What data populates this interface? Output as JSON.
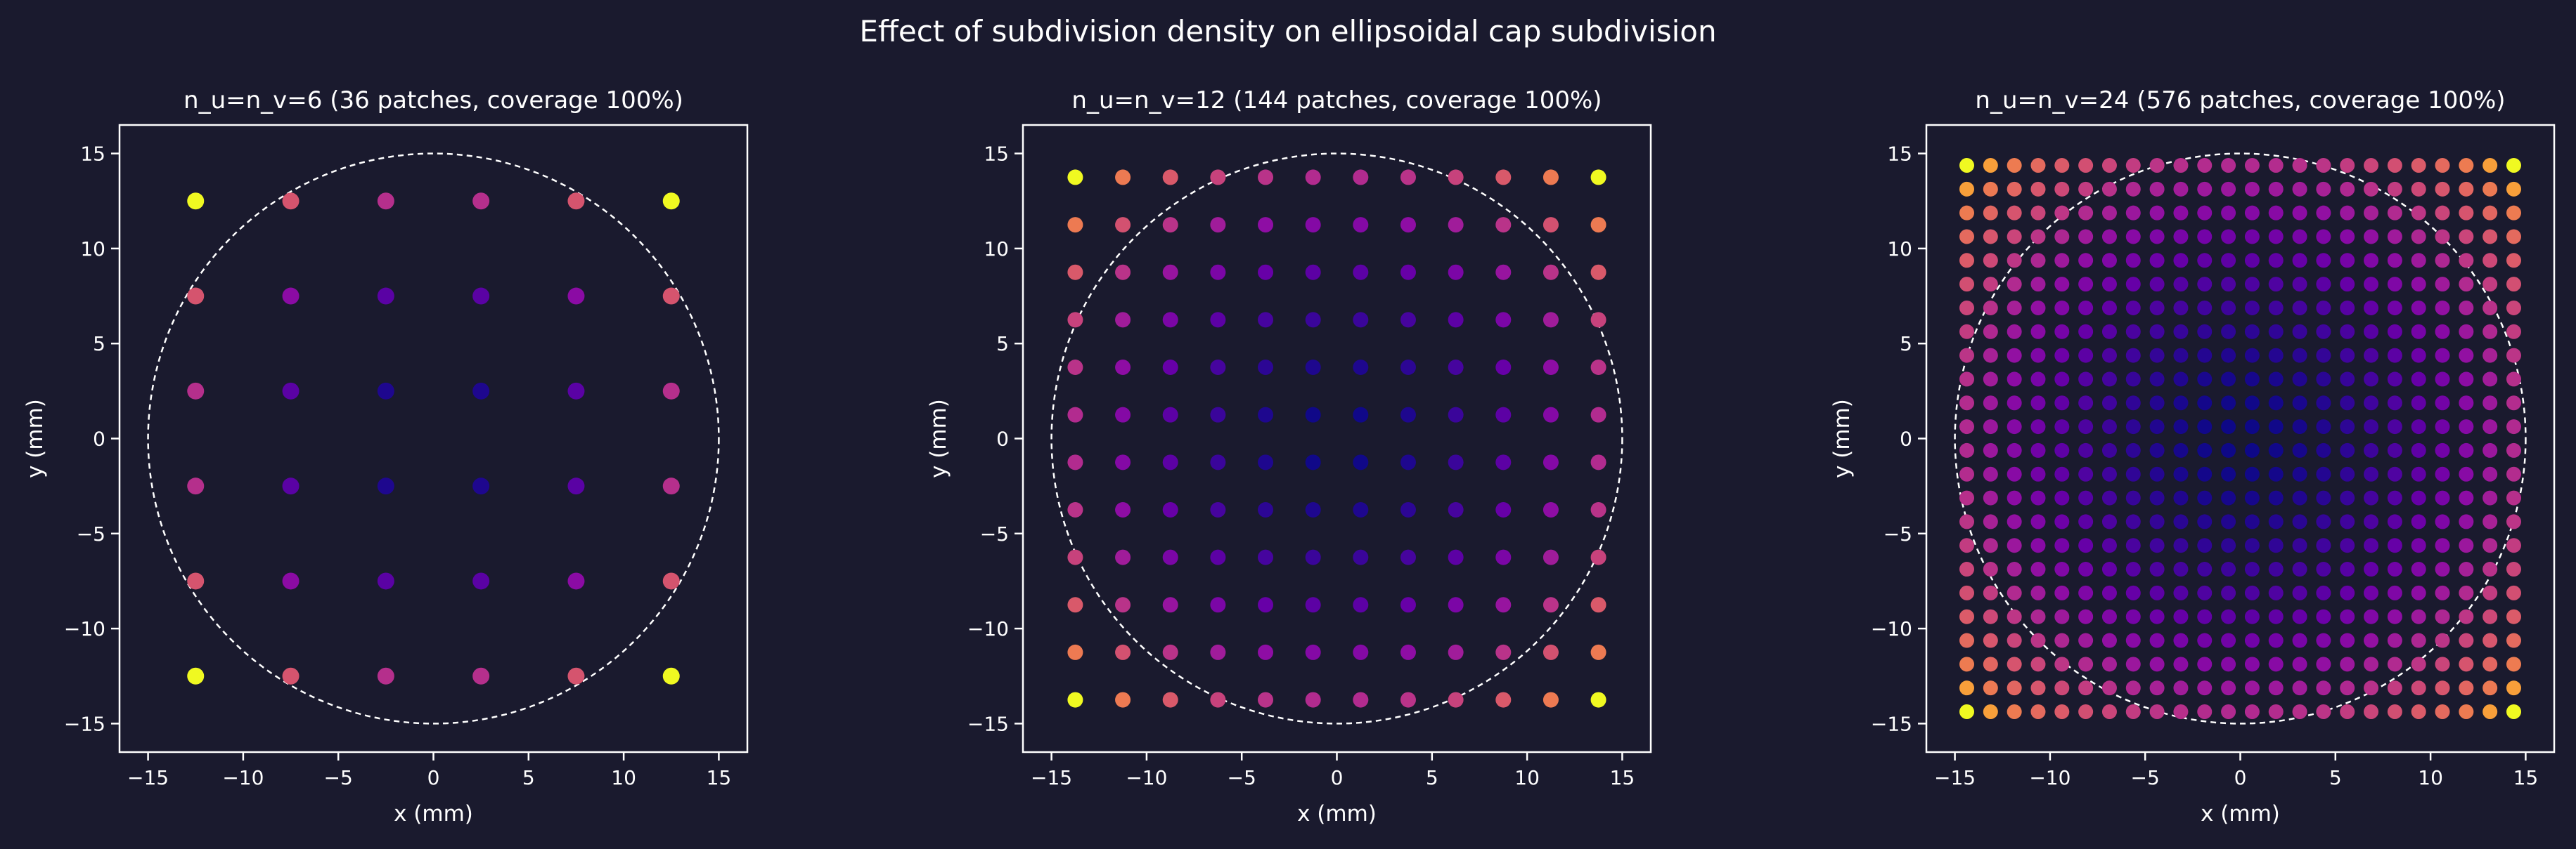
{
  "suptitle": "Effect of subdivision density on ellipsoidal cap subdivision",
  "chart_data": [
    {
      "type": "scatter",
      "title": "n_u=n_v=6  (36 patches, coverage 100%)",
      "n": 6,
      "xlabel": "x (mm)",
      "ylabel": "y (mm)",
      "xlim": [
        -16.5,
        16.5
      ],
      "ylim": [
        -16.5,
        16.5
      ],
      "xticks": [
        -15,
        -10,
        -5,
        0,
        5,
        10,
        15
      ],
      "yticks": [
        -15,
        -10,
        -5,
        0,
        5,
        10,
        15
      ],
      "cap_radius": 15,
      "point_spacing": 5,
      "grid": false
    },
    {
      "type": "scatter",
      "title": "n_u=n_v=12  (144 patches, coverage 100%)",
      "n": 12,
      "xlabel": "x (mm)",
      "ylabel": "y (mm)",
      "xlim": [
        -16.5,
        16.5
      ],
      "ylim": [
        -16.5,
        16.5
      ],
      "xticks": [
        -15,
        -10,
        -5,
        0,
        5,
        10,
        15
      ],
      "yticks": [
        -15,
        -10,
        -5,
        0,
        5,
        10,
        15
      ],
      "cap_radius": 15,
      "point_spacing": 2.5,
      "grid": false
    },
    {
      "type": "scatter",
      "title": "n_u=n_v=24  (576 patches, coverage 100%)",
      "n": 24,
      "xlabel": "x (mm)",
      "ylabel": "y (mm)",
      "xlim": [
        -16.5,
        16.5
      ],
      "ylim": [
        -16.5,
        16.5
      ],
      "xticks": [
        -15,
        -10,
        -5,
        0,
        5,
        10,
        15
      ],
      "yticks": [
        -15,
        -10,
        -5,
        0,
        5,
        10,
        15
      ],
      "cap_radius": 15,
      "point_spacing": 1.25,
      "grid": false
    }
  ],
  "colors": {
    "background": "#1a1a2e",
    "colormap": "plasma",
    "axes": "#ffffff"
  }
}
